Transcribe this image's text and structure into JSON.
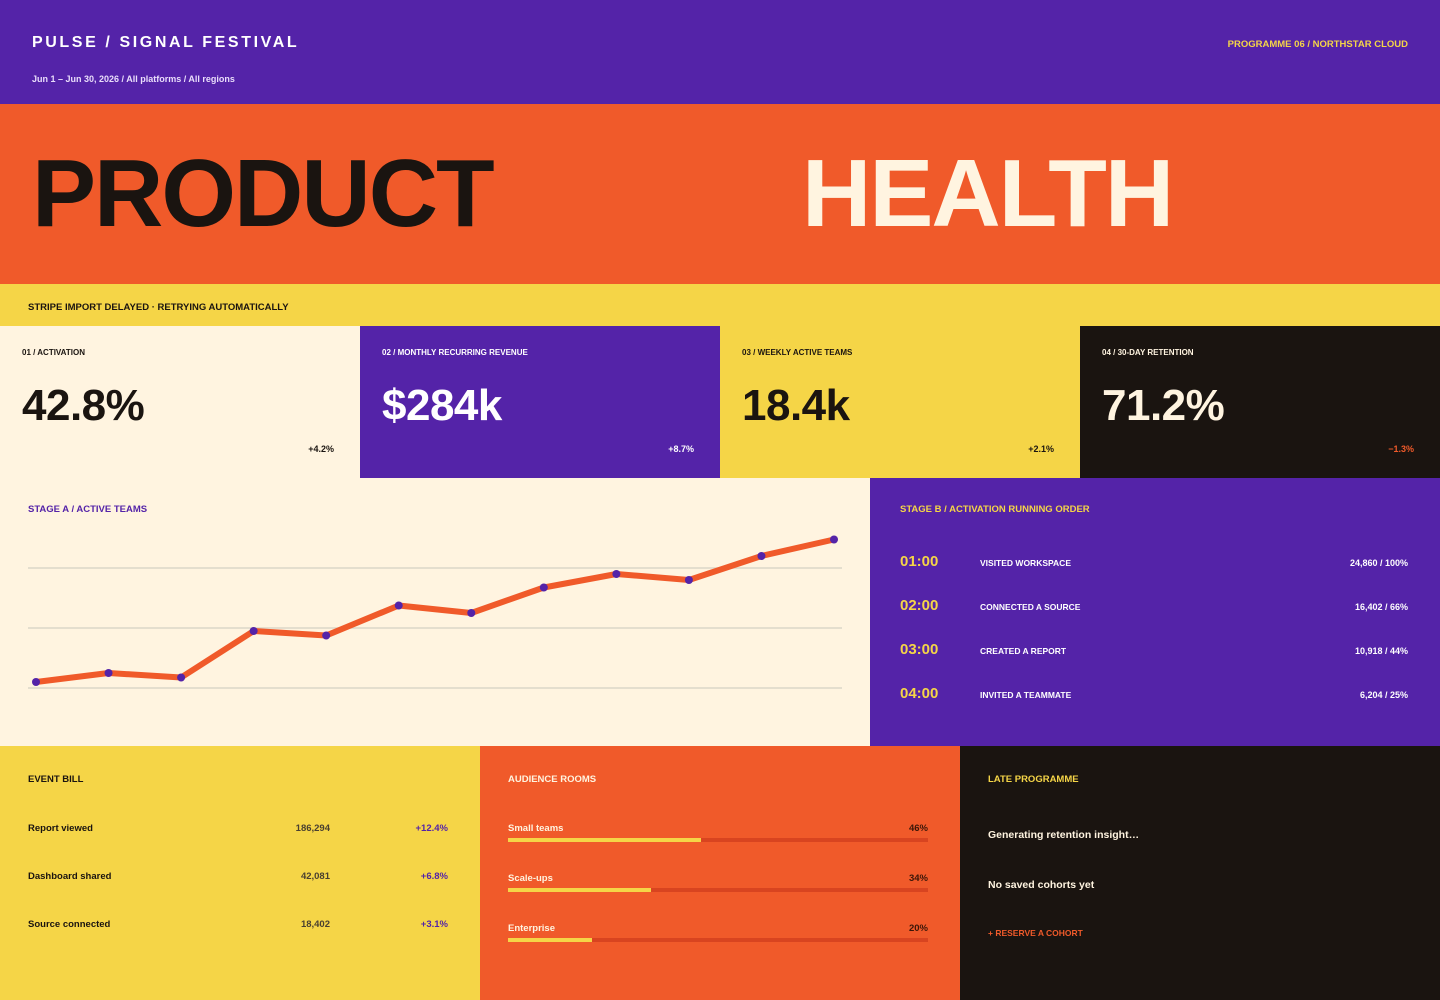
{
  "header": {
    "brand": "PULSE / SIGNAL FESTIVAL",
    "date_range": "Jun 1 – Jun 30, 2026 / All platforms / All regions",
    "programme": "PROGRAMME 06 / NORTHSTAR CLOUD"
  },
  "hero": {
    "word_a": "PRODUCT",
    "word_b": "HEALTH"
  },
  "alert": {
    "text": "STRIPE IMPORT DELAYED · RETRYING AUTOMATICALLY"
  },
  "kpis": [
    {
      "label": "01 / ACTIVATION",
      "value": "42.8%",
      "delta": "+4.2%"
    },
    {
      "label": "02 / MONTHLY RECURRING REVENUE",
      "value": "$284k",
      "delta": "+8.7%"
    },
    {
      "label": "03 / WEEKLY ACTIVE TEAMS",
      "value": "18.4k",
      "delta": "+2.1%"
    },
    {
      "label": "04 / 30-DAY RETENTION",
      "value": "71.2%",
      "delta": "−1.3%"
    }
  ],
  "colors": {
    "purple": "#5423A8",
    "orange": "#F05A2A",
    "yellow": "#F5D547",
    "cream": "#FFF4E0",
    "ink": "#1A1410"
  },
  "chart_panel": {
    "title": "STAGE A / ACTIVE TEAMS"
  },
  "chart_data": {
    "type": "line",
    "title": "STAGE A / ACTIVE TEAMS",
    "xlabel": "",
    "ylabel": "",
    "grid": true,
    "ylim": [
      0,
      100
    ],
    "series": [
      {
        "values": [
          8,
          14,
          11,
          42,
          39,
          59,
          54,
          71,
          80,
          76,
          92,
          103
        ]
      }
    ],
    "line_color": "#F05A2A",
    "marker_color": "#5423A8"
  },
  "funnel": {
    "title": "STAGE B / ACTIVATION RUNNING ORDER",
    "rows": [
      {
        "time": "01:00",
        "step": "VISITED WORKSPACE",
        "stat": "24,860 / 100%"
      },
      {
        "time": "02:00",
        "step": "CONNECTED A SOURCE",
        "stat": "16,402 / 66%"
      },
      {
        "time": "03:00",
        "step": "CREATED A REPORT",
        "stat": "10,918 / 44%"
      },
      {
        "time": "04:00",
        "step": "INVITED A TEAMMATE",
        "stat": "6,204 / 25%"
      }
    ]
  },
  "events": {
    "title": "EVENT BILL",
    "rows": [
      {
        "name": "Report viewed",
        "count": "186,294",
        "delta": "+12.4%"
      },
      {
        "name": "Dashboard shared",
        "count": "42,081",
        "delta": "+6.8%"
      },
      {
        "name": "Source connected",
        "count": "18,402",
        "delta": "+3.1%"
      }
    ]
  },
  "rooms": {
    "title": "AUDIENCE ROOMS",
    "rows": [
      {
        "name": "Small teams",
        "pct": "46%",
        "share": 0.46
      },
      {
        "name": "Scale-ups",
        "pct": "34%",
        "share": 0.34
      },
      {
        "name": "Enterprise",
        "pct": "20%",
        "share": 0.2
      }
    ]
  },
  "late": {
    "title": "LATE PROGRAMME",
    "loading": "Generating retention insight…",
    "empty": "No saved cohorts yet",
    "link": "+ RESERVE A COHORT"
  }
}
